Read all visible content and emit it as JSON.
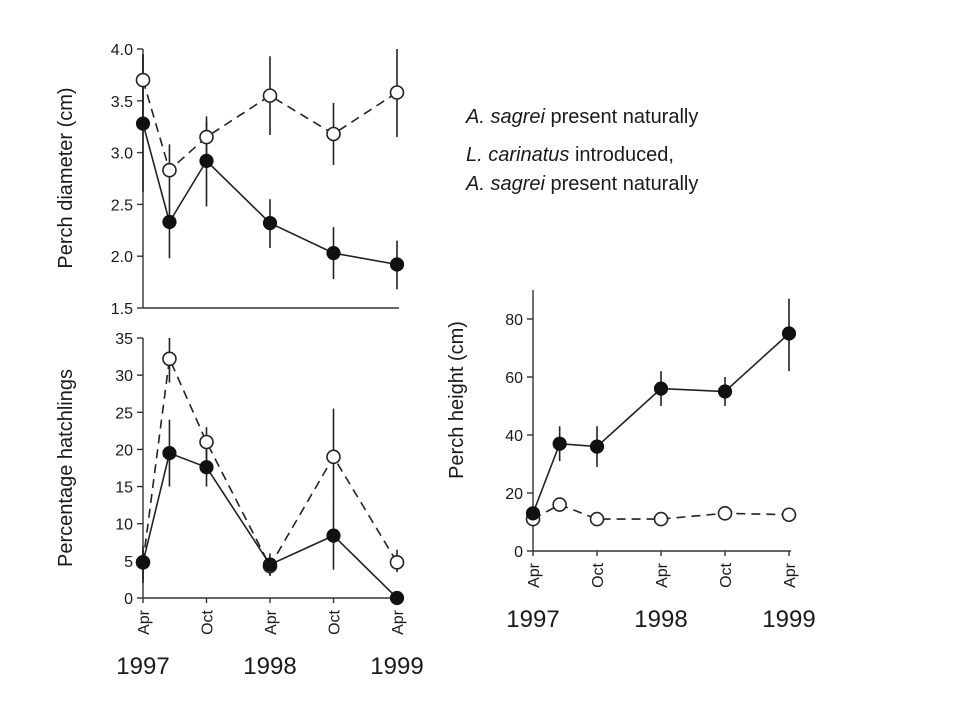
{
  "legend": {
    "open": {
      "species_italic": "A. sagrei",
      "text": " present naturally"
    },
    "filled": {
      "line1_italic": "L. carinatus",
      "line1_text": " introduced,",
      "line2_italic": "A. sagrei",
      "line2_text": " present naturally"
    }
  },
  "chart_data": [
    {
      "type": "line",
      "ylabel": "Perch diameter (cm)",
      "ylim": [
        1.5,
        4.0
      ],
      "yticks": [
        "1.5",
        "2.0",
        "2.5",
        "3.0",
        "3.5",
        "4.0"
      ],
      "x": [
        0,
        2.5,
        6,
        12,
        18,
        24
      ],
      "xlim": [
        0,
        24
      ],
      "series": [
        {
          "style": "open",
          "values": [
            3.7,
            2.83,
            3.15,
            3.55,
            3.18,
            3.58
          ],
          "err_low": [
            3.35,
            2.62,
            2.95,
            3.17,
            2.88,
            3.15
          ],
          "err_high": [
            3.95,
            3.08,
            3.3,
            3.93,
            3.48,
            4.0
          ]
        },
        {
          "style": "filled",
          "values": [
            3.28,
            2.33,
            2.92,
            2.32,
            2.03,
            1.92
          ],
          "err_low": [
            2.62,
            1.98,
            2.48,
            2.08,
            1.78,
            1.68
          ],
          "err_high": [
            3.95,
            2.62,
            3.35,
            2.55,
            2.28,
            2.15
          ]
        }
      ]
    },
    {
      "type": "line",
      "ylabel": "Percentage hatchlings",
      "ylim": [
        0,
        35
      ],
      "yticks": [
        "0",
        "5",
        "10",
        "15",
        "20",
        "25",
        "30",
        "35"
      ],
      "x": [
        0,
        2.5,
        6,
        12,
        18,
        24
      ],
      "xlim": [
        0,
        24
      ],
      "xticks": [
        "Apr",
        "Oct",
        "Apr",
        "Oct",
        "Apr"
      ],
      "xtick_positions": [
        0,
        6,
        12,
        18,
        24
      ],
      "years": [
        "1997",
        "1998",
        "1999"
      ],
      "year_positions": [
        0,
        12,
        24
      ],
      "series": [
        {
          "style": "open",
          "values": [
            4.8,
            32.2,
            21.0,
            4.3,
            19.0,
            4.8
          ],
          "err_low": [
            2.5,
            29.0,
            18.5,
            3.0,
            13.0,
            3.5
          ],
          "err_high": [
            6.5,
            35.0,
            23.0,
            5.5,
            25.5,
            6.5
          ]
        },
        {
          "style": "filled",
          "values": [
            4.8,
            19.5,
            17.6,
            4.5,
            8.4,
            0.0
          ],
          "err_low": [
            2.0,
            15.0,
            15.0,
            3.0,
            3.8,
            0.0
          ],
          "err_high": [
            7.0,
            24.0,
            20.0,
            6.0,
            13.0,
            0.0
          ]
        }
      ]
    },
    {
      "type": "line",
      "ylabel": "Perch height (cm)",
      "ylim": [
        0,
        90
      ],
      "yticks": [
        "0",
        "20",
        "40",
        "60",
        "80"
      ],
      "x": [
        0,
        2.5,
        6,
        12,
        18,
        24
      ],
      "xlim": [
        0,
        24
      ],
      "xticks": [
        "Apr",
        "Oct",
        "Apr",
        "Oct",
        "Apr"
      ],
      "xtick_positions": [
        0,
        6,
        12,
        18,
        24
      ],
      "years": [
        "1997",
        "1998",
        "1999"
      ],
      "year_positions": [
        0,
        12,
        24
      ],
      "series": [
        {
          "style": "open",
          "values": [
            11,
            16,
            11,
            11,
            13,
            12.5
          ],
          "err_low": [
            11,
            16,
            11,
            11,
            13,
            12.5
          ],
          "err_high": [
            11,
            16,
            11,
            11,
            13,
            12.5
          ]
        },
        {
          "style": "filled",
          "values": [
            13,
            37,
            36,
            56,
            55,
            75
          ],
          "err_low": [
            11,
            31,
            29,
            50,
            50,
            62
          ],
          "err_high": [
            15,
            43,
            43,
            62,
            60,
            87
          ]
        }
      ]
    }
  ]
}
